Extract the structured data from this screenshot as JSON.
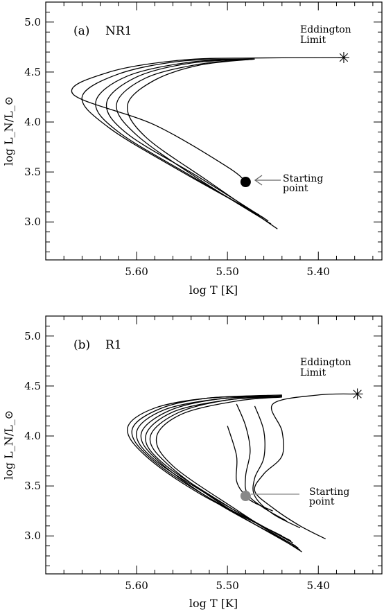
{
  "chart_data": [
    {
      "type": "line",
      "panel_label": "(a)",
      "model": "NR1",
      "xlabel": "log T [K]",
      "ylabel": "log L_N/L_⊙",
      "xlim": [
        5.7,
        5.33
      ],
      "ylim": [
        2.62,
        5.2
      ],
      "x_ticks": [
        "5.60",
        "5.50",
        "5.40"
      ],
      "y_ticks": [
        "3.0",
        "3.5",
        "4.0",
        "4.5",
        "5.0"
      ],
      "annotations": {
        "eddington": "Eddington",
        "eddington_2": "Limit",
        "starting": "Starting",
        "starting_2": "point"
      },
      "eddington_point": [
        5.372,
        4.645
      ],
      "start_point": [
        5.48,
        3.4
      ],
      "start_color": "#000000",
      "loops": [
        [
          [
            5.445,
            2.93
          ],
          [
            5.52,
            3.4
          ],
          [
            5.59,
            3.85
          ],
          [
            5.61,
            4.17
          ],
          [
            5.58,
            4.42
          ],
          [
            5.53,
            4.57
          ],
          [
            5.47,
            4.63
          ]
        ],
        [
          [
            5.452,
            2.98
          ],
          [
            5.53,
            3.42
          ],
          [
            5.6,
            3.87
          ],
          [
            5.622,
            4.18
          ],
          [
            5.59,
            4.44
          ],
          [
            5.53,
            4.58
          ],
          [
            5.47,
            4.63
          ]
        ],
        [
          [
            5.455,
            3.01
          ],
          [
            5.53,
            3.44
          ],
          [
            5.61,
            3.88
          ],
          [
            5.633,
            4.19
          ],
          [
            5.6,
            4.45
          ],
          [
            5.54,
            4.59
          ],
          [
            5.47,
            4.63
          ]
        ],
        [
          [
            5.46,
            3.04
          ],
          [
            5.54,
            3.46
          ],
          [
            5.62,
            3.9
          ],
          [
            5.645,
            4.2
          ],
          [
            5.61,
            4.46
          ],
          [
            5.54,
            4.6
          ],
          [
            5.47,
            4.63
          ]
        ],
        [
          [
            5.465,
            3.07
          ],
          [
            5.55,
            3.5
          ],
          [
            5.63,
            3.94
          ],
          [
            5.66,
            4.25
          ],
          [
            5.62,
            4.48
          ],
          [
            5.55,
            4.61
          ],
          [
            5.47,
            4.63
          ]
        ],
        [
          [
            5.48,
            3.4
          ],
          [
            5.5,
            3.55
          ],
          [
            5.58,
            3.97
          ],
          [
            5.67,
            4.28
          ],
          [
            5.63,
            4.5
          ],
          [
            5.55,
            4.62
          ],
          [
            5.47,
            4.64
          ],
          [
            5.372,
            4.645
          ]
        ]
      ]
    },
    {
      "type": "line",
      "panel_label": "(b)",
      "model": "R1",
      "xlabel": "log T [K]",
      "ylabel": "log L_N/L_⊙",
      "xlim": [
        5.7,
        5.33
      ],
      "ylim": [
        2.62,
        5.2
      ],
      "x_ticks": [
        "5.60",
        "5.50",
        "5.40"
      ],
      "y_ticks": [
        "3.0",
        "3.5",
        "4.0",
        "4.5",
        "5.0"
      ],
      "annotations": {
        "eddington": "Eddington",
        "eddington_2": "Limit",
        "starting": "Starting",
        "starting_2": "point"
      },
      "eddington_point": [
        5.357,
        4.42
      ],
      "start_point": [
        5.48,
        3.4
      ],
      "start_color": "#888888",
      "loops": [
        [
          [
            5.418,
            2.84
          ],
          [
            5.49,
            3.26
          ],
          [
            5.56,
            3.7
          ],
          [
            5.578,
            3.99
          ],
          [
            5.55,
            4.22
          ],
          [
            5.49,
            4.35
          ],
          [
            5.44,
            4.39
          ]
        ],
        [
          [
            5.42,
            2.86
          ],
          [
            5.5,
            3.28
          ],
          [
            5.565,
            3.71
          ],
          [
            5.585,
            3.99
          ],
          [
            5.555,
            4.23
          ],
          [
            5.5,
            4.36
          ],
          [
            5.44,
            4.39
          ]
        ],
        [
          [
            5.422,
            2.88
          ],
          [
            5.5,
            3.3
          ],
          [
            5.57,
            3.72
          ],
          [
            5.59,
            4.0
          ],
          [
            5.56,
            4.24
          ],
          [
            5.5,
            4.36
          ],
          [
            5.44,
            4.4
          ]
        ],
        [
          [
            5.425,
            2.9
          ],
          [
            5.51,
            3.32
          ],
          [
            5.575,
            3.74
          ],
          [
            5.595,
            4.02
          ],
          [
            5.565,
            4.25
          ],
          [
            5.51,
            4.37
          ],
          [
            5.44,
            4.4
          ]
        ],
        [
          [
            5.428,
            2.93
          ],
          [
            5.51,
            3.35
          ],
          [
            5.58,
            3.76
          ],
          [
            5.6,
            4.04
          ],
          [
            5.57,
            4.26
          ],
          [
            5.51,
            4.37
          ],
          [
            5.44,
            4.4
          ]
        ],
        [
          [
            5.43,
            2.95
          ],
          [
            5.52,
            3.38
          ],
          [
            5.585,
            3.78
          ],
          [
            5.605,
            4.06
          ],
          [
            5.575,
            4.27
          ],
          [
            5.52,
            4.38
          ],
          [
            5.44,
            4.4
          ]
        ],
        [
          [
            5.44,
            3.0
          ],
          [
            5.53,
            3.42
          ],
          [
            5.59,
            3.8
          ],
          [
            5.61,
            4.08
          ],
          [
            5.58,
            4.28
          ],
          [
            5.52,
            4.38
          ],
          [
            5.44,
            4.41
          ]
        ],
        [
          [
            5.392,
            2.97
          ],
          [
            5.42,
            3.1
          ],
          [
            5.45,
            3.28
          ],
          [
            5.47,
            3.45
          ],
          [
            5.46,
            3.62
          ],
          [
            5.44,
            3.8
          ],
          [
            5.44,
            4.05
          ],
          [
            5.45,
            4.32
          ],
          [
            5.4,
            4.41
          ],
          [
            5.357,
            4.42
          ]
        ],
        [
          [
            5.42,
            3.08
          ],
          [
            5.45,
            3.22
          ],
          [
            5.47,
            3.4
          ],
          [
            5.47,
            3.58
          ],
          [
            5.46,
            3.78
          ],
          [
            5.46,
            4.05
          ],
          [
            5.47,
            4.3
          ]
        ],
        [
          [
            5.435,
            3.15
          ],
          [
            5.46,
            3.28
          ],
          [
            5.478,
            3.42
          ],
          [
            5.48,
            3.6
          ],
          [
            5.475,
            3.85
          ],
          [
            5.48,
            4.1
          ],
          [
            5.49,
            4.32
          ]
        ],
        [
          [
            5.45,
            3.25
          ],
          [
            5.47,
            3.33
          ],
          [
            5.48,
            3.4
          ],
          [
            5.49,
            3.55
          ],
          [
            5.49,
            3.8
          ],
          [
            5.5,
            4.1
          ]
        ]
      ]
    }
  ]
}
